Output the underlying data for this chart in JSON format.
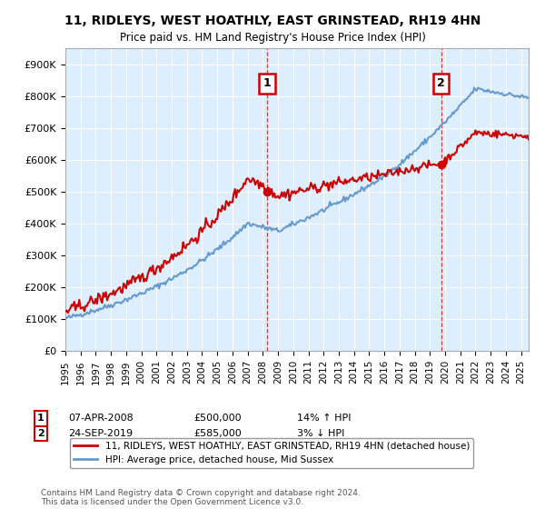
{
  "title": "11, RIDLEYS, WEST HOATHLY, EAST GRINSTEAD, RH19 4HN",
  "subtitle": "Price paid vs. HM Land Registry's House Price Index (HPI)",
  "ylabel_ticks": [
    "£0",
    "£100K",
    "£200K",
    "£300K",
    "£400K",
    "£500K",
    "£600K",
    "£700K",
    "£800K",
    "£900K"
  ],
  "ytick_values": [
    0,
    100000,
    200000,
    300000,
    400000,
    500000,
    600000,
    700000,
    800000,
    900000
  ],
  "ylim": [
    0,
    950000
  ],
  "xlim_start": 1995.0,
  "xlim_end": 2025.5,
  "marker1_x": 2008.27,
  "marker1_y": 500000,
  "marker2_x": 2019.73,
  "marker2_y": 585000,
  "legend_line1": "11, RIDLEYS, WEST HOATHLY, EAST GRINSTEAD, RH19 4HN (detached house)",
  "legend_line2": "HPI: Average price, detached house, Mid Sussex",
  "footer": "Contains HM Land Registry data © Crown copyright and database right 2024.\nThis data is licensed under the Open Government Licence v3.0.",
  "line_color_red": "#cc0000",
  "line_color_blue": "#6699cc",
  "bg_color": "#ddeeff",
  "grid_color": "#ffffff",
  "marker_box_color": "#cc0000"
}
